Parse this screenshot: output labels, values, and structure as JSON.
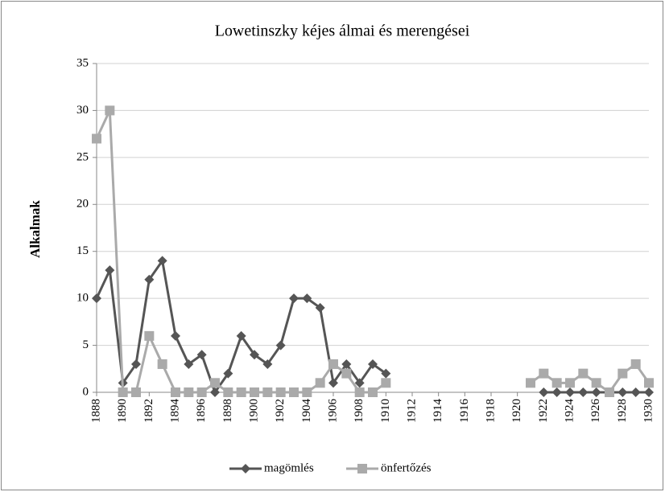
{
  "chart_data": {
    "type": "line",
    "title": "Lowetinszky kéjes álmai és merengései",
    "y_label": "Alkalmak",
    "x": [
      1888,
      1889,
      1890,
      1891,
      1892,
      1893,
      1894,
      1895,
      1896,
      1897,
      1898,
      1899,
      1900,
      1901,
      1902,
      1903,
      1904,
      1905,
      1906,
      1907,
      1908,
      1909,
      1910,
      1911,
      1912,
      1913,
      1914,
      1915,
      1916,
      1917,
      1918,
      1919,
      1920,
      1921,
      1922,
      1923,
      1924,
      1925,
      1926,
      1927,
      1928,
      1929,
      1930
    ],
    "xlim": [
      1888,
      1930
    ],
    "xticks": [
      1888,
      1890,
      1892,
      1894,
      1896,
      1898,
      1900,
      1902,
      1904,
      1906,
      1908,
      1910,
      1912,
      1914,
      1916,
      1918,
      1920,
      1922,
      1924,
      1926,
      1928,
      1930
    ],
    "ylim": [
      0,
      35
    ],
    "yticks": [
      0,
      5,
      10,
      15,
      20,
      25,
      30,
      35
    ],
    "grid": true,
    "legend": "bottom",
    "series": [
      {
        "name": "magömlés",
        "color": "#555555",
        "marker": "diamond",
        "values": [
          10,
          13,
          1,
          3,
          12,
          14,
          6,
          3,
          4,
          0,
          2,
          6,
          4,
          3,
          5,
          10,
          10,
          9,
          1,
          3,
          1,
          3,
          2,
          null,
          null,
          null,
          null,
          null,
          null,
          null,
          null,
          null,
          null,
          null,
          0,
          0,
          0,
          0,
          0,
          0,
          0,
          0,
          0
        ]
      },
      {
        "name": "önfertőzés",
        "color": "#aaaaaa",
        "marker": "square",
        "values": [
          27,
          30,
          0,
          0,
          6,
          3,
          0,
          0,
          0,
          1,
          0,
          0,
          0,
          0,
          0,
          0,
          0,
          1,
          3,
          2,
          0,
          0,
          1,
          null,
          null,
          null,
          null,
          null,
          null,
          null,
          null,
          null,
          null,
          1,
          2,
          1,
          1,
          2,
          1,
          0,
          2,
          3,
          1
        ]
      }
    ]
  }
}
